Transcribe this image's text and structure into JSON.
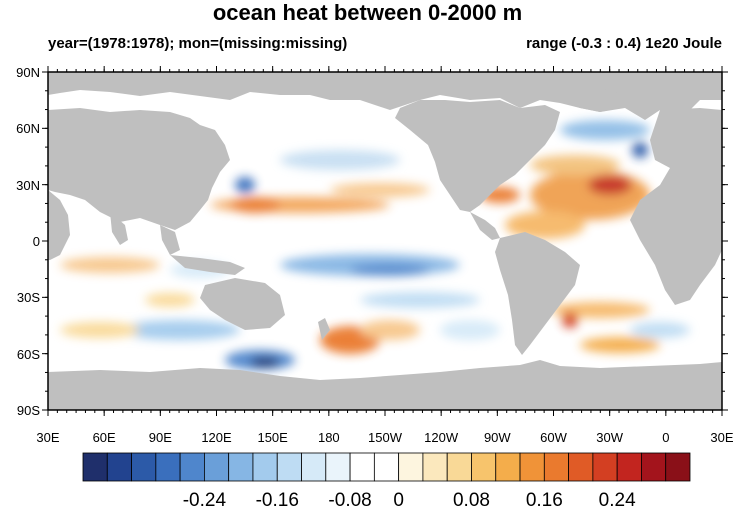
{
  "title": "ocean heat between 0-2000 m",
  "subtitle_left": "year=(1978:1978); mon=(missing:missing)",
  "subtitle_right": "range (-0.3 : 0.4) 1e20 Joule",
  "colors": {
    "land": "#bfbfbf",
    "ocean_neutral": "#ffffff"
  },
  "lat_labels": [
    "90N",
    "60N",
    "30N",
    "0",
    "30S",
    "60S",
    "90S"
  ],
  "lon_labels": [
    "30E",
    "60E",
    "90E",
    "120E",
    "150E",
    "180",
    "150W",
    "120W",
    "90W",
    "60W",
    "30W",
    "0",
    "30E"
  ],
  "colorbar": {
    "colors": [
      "#1f2f6b",
      "#22438f",
      "#2c5aa8",
      "#3a6fbd",
      "#4f86cc",
      "#6a9fd9",
      "#86b6e4",
      "#a3cbed",
      "#bedcf3",
      "#d6eaf8",
      "#eaf4fb",
      "#ffffff",
      "#ffffff",
      "#fdf5df",
      "#fbe8bd",
      "#f9d997",
      "#f7c46c",
      "#f4ad4b",
      "#f09338",
      "#ea7a2e",
      "#e05b26",
      "#d33f22",
      "#c2251f",
      "#a3141c",
      "#8a1018"
    ],
    "tick_labels": [
      "-0.24",
      "-0.16",
      "-0.08",
      "0",
      "0.08",
      "0.16",
      "0.24"
    ]
  }
}
